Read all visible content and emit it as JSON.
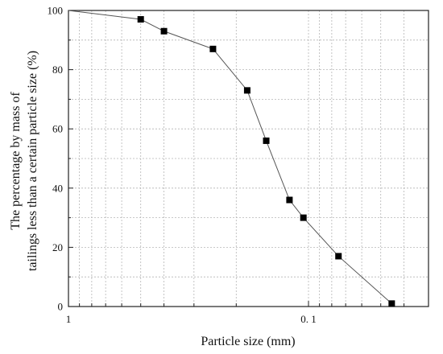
{
  "chart_data": {
    "type": "line",
    "xlabel": "Particle size (mm)",
    "ylabel_lines": [
      "The percentage by mass of",
      "tailings less than a certain particle size (%)"
    ],
    "x_scale": "log",
    "x_reversed": true,
    "xlim": [
      1,
      0.03
    ],
    "ylim": [
      0,
      100
    ],
    "x_tick_labels": [
      {
        "value": 1,
        "label": "1"
      },
      {
        "value": 0.1,
        "label": "0. 1"
      }
    ],
    "y_ticks": [
      0,
      20,
      40,
      60,
      80,
      100
    ],
    "grid": true,
    "series": [
      {
        "marker": "square",
        "color": "#000000",
        "points": [
          {
            "x": 1.0,
            "y": 100
          },
          {
            "x": 0.5,
            "y": 97
          },
          {
            "x": 0.4,
            "y": 93
          },
          {
            "x": 0.25,
            "y": 87
          },
          {
            "x": 0.18,
            "y": 73
          },
          {
            "x": 0.15,
            "y": 56
          },
          {
            "x": 0.12,
            "y": 36
          },
          {
            "x": 0.105,
            "y": 30
          },
          {
            "x": 0.075,
            "y": 17
          },
          {
            "x": 0.045,
            "y": 1
          }
        ]
      }
    ]
  }
}
